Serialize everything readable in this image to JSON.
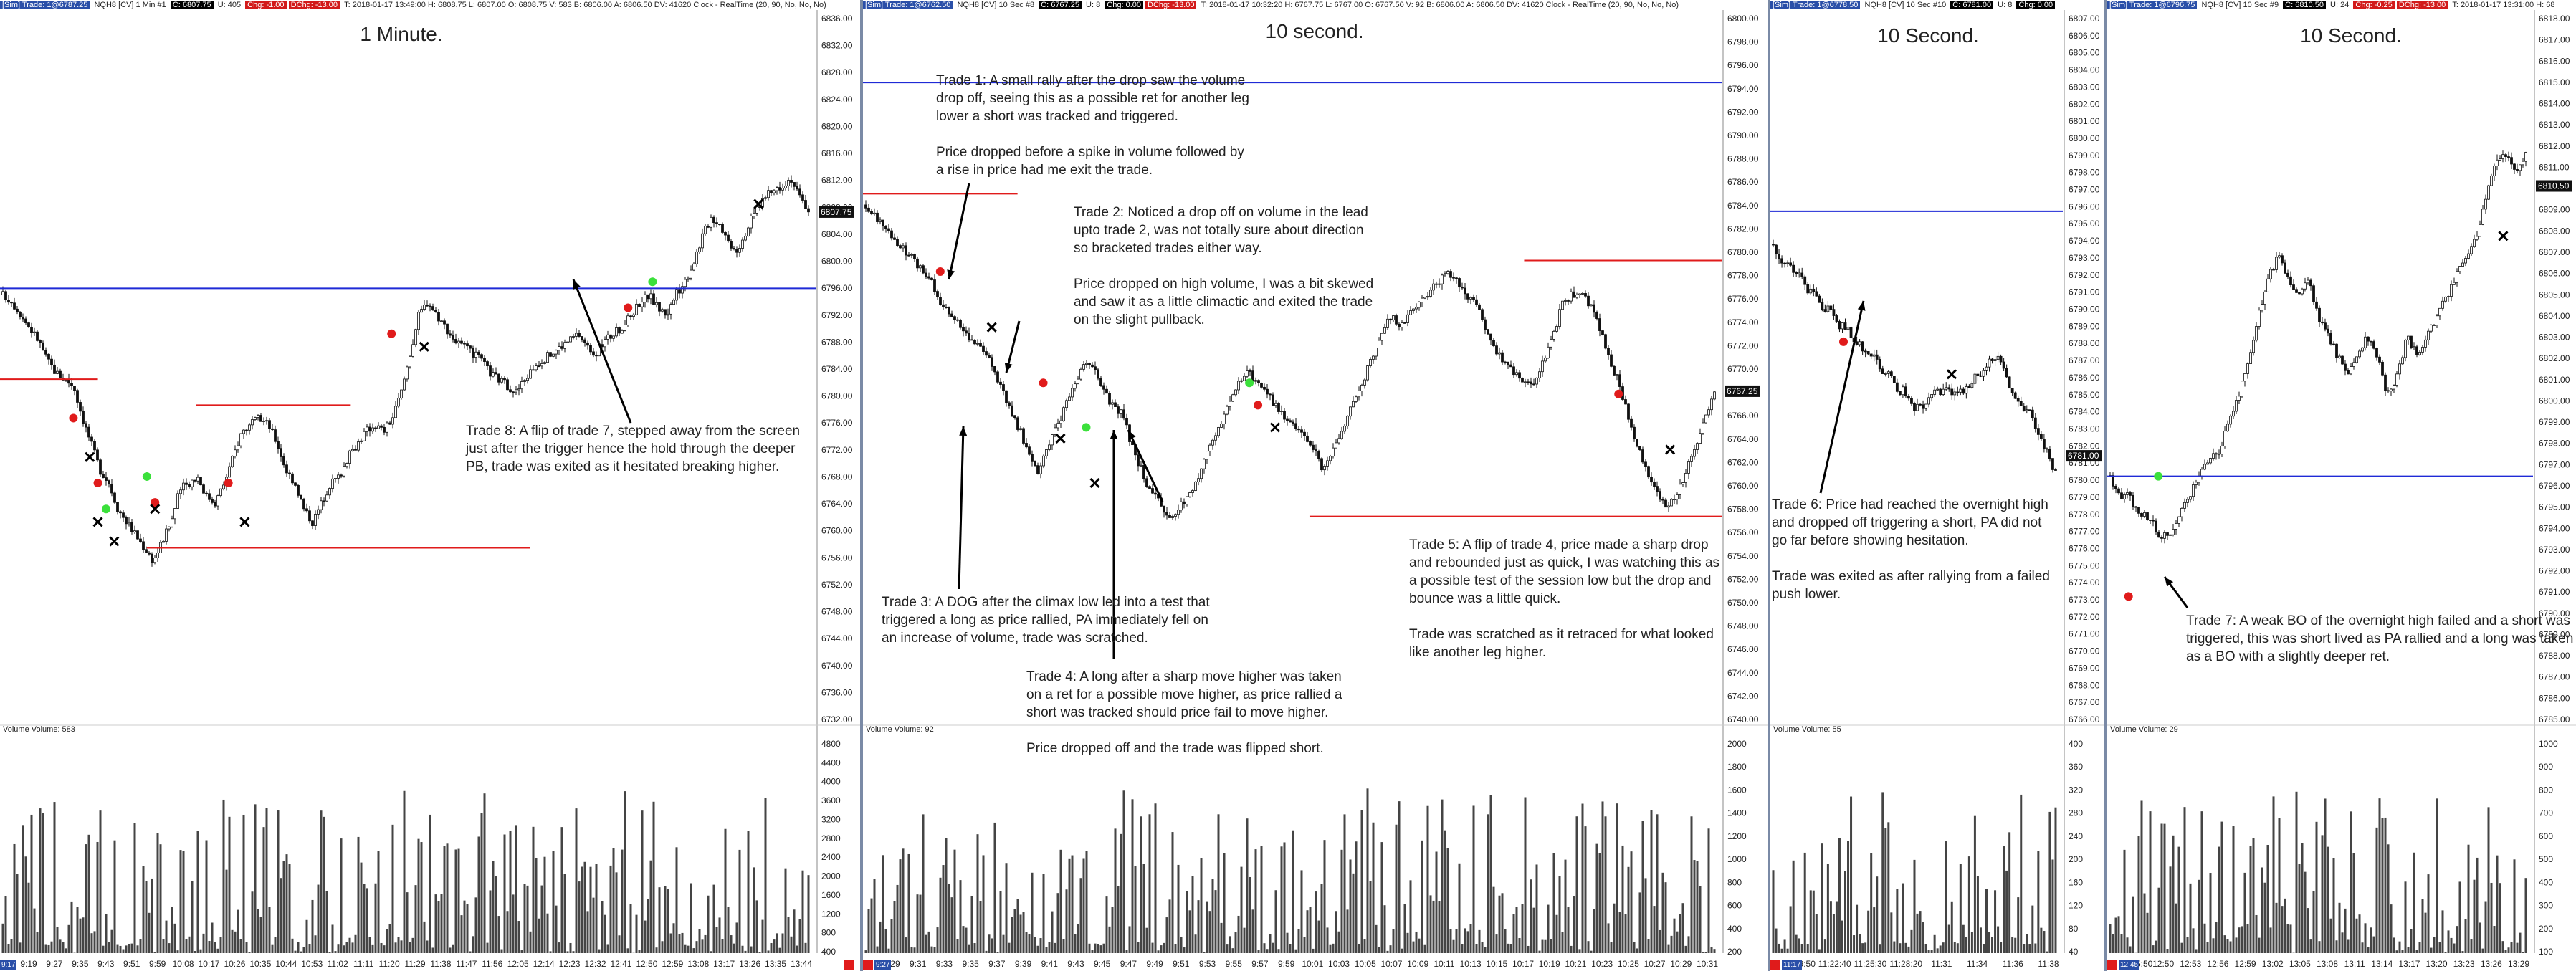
{
  "panels": [
    {
      "id": "p1",
      "title": "1 Minute.",
      "topbar": [
        "[Sim] Trade: 1@6787.25",
        "NQH8 [CV] 1 Min #1",
        "C: 6807.75",
        "U: 405",
        "Chg: -1.00",
        "DChg: -13.00",
        "T: 2018-01-17 13:49:00 H: 6808.75 L: 6807.00 O: 6808.75 V: 583 B: 6806.00 A: 6806.50 DV: 41620 Clock - RealTime  (20, 90, No, No, No)"
      ],
      "price_label": "6807.75",
      "volume_label": "Volume  Volume: 583",
      "y_ticks": [
        "6836.00",
        "6832.00",
        "6828.00",
        "6824.00",
        "6820.00",
        "6816.00",
        "6812.00",
        "6808.00",
        "6804.00",
        "6800.00",
        "6796.00",
        "6792.00",
        "6788.00",
        "6784.00",
        "6780.00",
        "6776.00",
        "6772.00",
        "6768.00",
        "6764.00",
        "6760.00",
        "6756.00",
        "6752.00",
        "6748.00",
        "6744.00",
        "6740.00",
        "6736.00",
        "6732.00"
      ],
      "vol_ticks": [
        "4800",
        "4400",
        "4000",
        "3600",
        "3200",
        "2800",
        "2400",
        "2000",
        "1600",
        "1200",
        "800",
        "400"
      ],
      "x_ticks": [
        "9:19",
        "9:27",
        "9:35",
        "9:43",
        "9:51",
        "9:59",
        "10:08",
        "10:17",
        "10:26",
        "10:35",
        "10:44",
        "10:53",
        "11:02",
        "11:11",
        "11:20",
        "11:29",
        "11:38",
        "11:47",
        "11:56",
        "12:05",
        "12:14",
        "12:23",
        "12:32",
        "12:41",
        "12:50",
        "12:59",
        "13:08",
        "13:17",
        "13:26",
        "13:35",
        "13:44"
      ],
      "corner": "9:17",
      "annotations": [
        {
          "name": "annotation-trade-8",
          "text": "Trade 8:  A flip of trade 7, stepped away from the screen\njust after the trigger hence the hold through the deeper\nPB, trade was exited as it hesitated breaking higher."
        }
      ]
    },
    {
      "id": "p2",
      "title": "10 second.",
      "topbar": [
        "[Sim] Trade: 1@6762.50",
        "NQH8 [CV] 10 Sec #8",
        "C: 6767.25",
        "U: 8",
        "Chg: 0.00",
        "DChg: -13.00",
        "T: 2018-01-17 10:32:20 H: 6767.75 L: 6767.00 O: 6767.50 V: 92 B: 6806.00 A: 6806.50 DV: 41620 Clock - RealTime  (20, 90, No, No, No)"
      ],
      "price_label": "6767.25",
      "volume_label": "Volume  Volume: 92",
      "y_ticks": [
        "6800.00",
        "6798.00",
        "6796.00",
        "6794.00",
        "6792.00",
        "6790.00",
        "6788.00",
        "6786.00",
        "6784.00",
        "6782.00",
        "6780.00",
        "6778.00",
        "6776.00",
        "6774.00",
        "6772.00",
        "6770.00",
        "6768.00",
        "6766.00",
        "6764.00",
        "6762.00",
        "6760.00",
        "6758.00",
        "6756.00",
        "6754.00",
        "6752.00",
        "6750.00",
        "6748.00",
        "6746.00",
        "6744.00",
        "6742.00",
        "6740.00"
      ],
      "vol_ticks": [
        "2000",
        "1800",
        "1600",
        "1400",
        "1200",
        "1000",
        "800",
        "600",
        "400",
        "200"
      ],
      "x_ticks": [
        "9:29",
        "9:31",
        "9:33",
        "9:35",
        "9:37",
        "9:39",
        "9:41",
        "9:43",
        "9:45",
        "9:47",
        "9:49",
        "9:51",
        "9:53",
        "9:55",
        "9:57",
        "9:59",
        "10:01",
        "10:03",
        "10:05",
        "10:07",
        "10:09",
        "10:11",
        "10:13",
        "10:15",
        "10:17",
        "10:19",
        "10:21",
        "10:23",
        "10:25",
        "10:27",
        "10:29",
        "10:31"
      ],
      "corner": "9:27",
      "annotations": [
        {
          "name": "annotation-trade-1",
          "text": "Trade 1:  A small rally after the drop saw the volume\ndrop off, seeing this as a possible ret for another leg\nlower a short was tracked and triggered.\n\nPrice dropped before a spike in volume followed by\na rise in price had me exit the trade."
        },
        {
          "name": "annotation-trade-2",
          "text": "Trade 2:  Noticed a drop off on volume in the lead\nupto trade 2, was not totally sure about direction\nso bracketed trades either way.\n\nPrice dropped on high volume, I was a bit skewed\nand saw it as a little climactic and exited the trade\non the slight pullback."
        },
        {
          "name": "annotation-trade-3",
          "text": "Trade 3:  A DOG after the climax low led into a test that\ntriggered a long as price rallied, PA immediately fell on\nan increase of volume, trade was scratched."
        },
        {
          "name": "annotation-trade-4",
          "text": "Trade 4:  A long after a sharp move higher was taken\non a ret for a possible move higher, as price rallied a\nshort was tracked should price fail to move higher.\n\nPrice dropped off and the trade was flipped short."
        },
        {
          "name": "annotation-trade-5",
          "text": "Trade 5:  A flip of trade 4, price made a sharp drop\nand rebounded just as quick, I was watching this as\na possible test of the session low but the drop and\nbounce was a little quick.\n\nTrade was scratched as it retraced for what looked\nlike another leg higher."
        }
      ]
    },
    {
      "id": "p3",
      "title": "10 Second.",
      "topbar": [
        "[Sim] Trade: 1@6778.50",
        "NQH8 [CV] 10 Sec #10",
        "C: 6781.00",
        "U: 8",
        "Chg: 0.00"
      ],
      "price_label": "6781.00",
      "volume_label": "Volume  Volume: 55",
      "y_ticks": [
        "6807.00",
        "6806.00",
        "6805.00",
        "6804.00",
        "6803.00",
        "6802.00",
        "6801.00",
        "6800.00",
        "6799.00",
        "6798.00",
        "6797.00",
        "6796.00",
        "6795.00",
        "6794.00",
        "6793.00",
        "6792.00",
        "6791.00",
        "6790.00",
        "6789.00",
        "6788.00",
        "6787.00",
        "6786.00",
        "6785.00",
        "6784.00",
        "6783.00",
        "6782.00",
        "6781.00",
        "6780.00",
        "6779.00",
        "6778.00",
        "6777.00",
        "6776.00",
        "6775.00",
        "6774.00",
        "6773.00",
        "6772.00",
        "6771.00",
        "6770.00",
        "6769.00",
        "6768.00",
        "6767.00",
        "6766.00"
      ],
      "vol_ticks": [
        "400",
        "360",
        "320",
        "280",
        "240",
        "200",
        "160",
        "120",
        "80",
        "40"
      ],
      "x_ticks": [
        "11:19:50",
        "11:22:40",
        "11:25:30",
        "11:28:20",
        "11:31",
        "11:34",
        "11:36",
        "11:38"
      ],
      "corner": "11:17",
      "annotations": [
        {
          "name": "annotation-trade-6",
          "text": "Trade 6:  Price had reached the overnight high\nand dropped off triggering a short, PA did not\ngo far before showing hesitation.\n\nTrade was exited as after rallying from a failed\npush lower."
        }
      ]
    },
    {
      "id": "p4",
      "title": "10 Second.",
      "topbar": [
        "[Sim] Trade: 1@6796.75",
        "NQH8 [CV] 10 Sec #9",
        "C: 6810.50",
        "U: 24",
        "Chg: -0.25",
        "DChg: -13.00",
        "T: 2018-01-17 13:31:00 H: 68"
      ],
      "price_label": "6810.50",
      "volume_label": "Volume  Volume: 29",
      "y_ticks": [
        "6818.00",
        "6817.00",
        "6816.00",
        "6815.00",
        "6814.00",
        "6813.00",
        "6812.00",
        "6811.00",
        "6810.00",
        "6809.00",
        "6808.00",
        "6807.00",
        "6806.00",
        "6805.00",
        "6804.00",
        "6803.00",
        "6802.00",
        "6801.00",
        "6800.00",
        "6799.00",
        "6798.00",
        "6797.00",
        "6796.00",
        "6795.00",
        "6794.00",
        "6793.00",
        "6792.00",
        "6791.00",
        "6790.00",
        "6789.00",
        "6788.00",
        "6787.00",
        "6786.00",
        "6785.00"
      ],
      "vol_ticks": [
        "1000",
        "900",
        "800",
        "700",
        "600",
        "500",
        "400",
        "300",
        "200",
        "100"
      ],
      "x_ticks": [
        "12:45:50",
        "12:50",
        "12:53",
        "12:56",
        "12:59",
        "13:02",
        "13:05",
        "13:08",
        "13:11",
        "13:14",
        "13:17",
        "13:20",
        "13:23",
        "13:26",
        "13:29"
      ],
      "corner": "12:45",
      "annotations": [
        {
          "name": "annotation-trade-7",
          "text": "Trade 7:  A weak BO of the overnight high failed and a short was\ntriggered, this was short lived as PA rallied and a long was taken\nas a BO with a slightly deeper ret."
        }
      ]
    }
  ],
  "chart_data": [
    {
      "type": "candlestick",
      "title": "1 Minute.",
      "ylim": [
        6730,
        6838
      ],
      "close": [
        6795,
        6794,
        6792,
        6790,
        6788,
        6785,
        6783,
        6782,
        6781,
        6776,
        6772,
        6768,
        6766,
        6762,
        6760,
        6758,
        6756,
        6754,
        6757,
        6760,
        6765,
        6766,
        6767,
        6764,
        6763,
        6766,
        6770,
        6774,
        6775,
        6776,
        6775,
        6772,
        6768,
        6766,
        6762,
        6760,
        6763,
        6766,
        6767,
        6770,
        6772,
        6774,
        6775,
        6774,
        6776,
        6780,
        6786,
        6792,
        6794,
        6792,
        6790,
        6788,
        6787,
        6786,
        6785,
        6783,
        6782,
        6781,
        6780,
        6782,
        6784,
        6785,
        6786,
        6787,
        6788,
        6789,
        6787,
        6786,
        6788,
        6789,
        6790,
        6792,
        6794,
        6795,
        6793,
        6792,
        6795,
        6797,
        6800,
        6804,
        6807,
        6806,
        6803,
        6802,
        6805,
        6808,
        6810,
        6811,
        6812,
        6813,
        6810,
        6808
      ]
    },
    {
      "type": "candlestick",
      "title": "10 second.",
      "ylim": [
        6738,
        6801
      ],
      "close": [
        6784,
        6783,
        6782,
        6781,
        6780,
        6779,
        6778,
        6777,
        6775,
        6774,
        6773,
        6772,
        6771,
        6770,
        6768,
        6766,
        6764,
        6762,
        6760,
        6762,
        6764,
        6766,
        6768,
        6770,
        6769,
        6767,
        6766,
        6765,
        6762,
        6760,
        6758,
        6757,
        6756,
        6757,
        6758,
        6760,
        6762,
        6764,
        6766,
        6768,
        6769,
        6768,
        6767,
        6766,
        6765,
        6764,
        6763,
        6762,
        6760,
        6762,
        6764,
        6766,
        6768,
        6770,
        6772,
        6774,
        6773,
        6774,
        6775,
        6776,
        6777,
        6778,
        6777,
        6776,
        6775,
        6773,
        6771,
        6770,
        6769,
        6768,
        6768,
        6770,
        6772,
        6775,
        6776,
        6776,
        6775,
        6773,
        6770,
        6768,
        6765,
        6762,
        6760,
        6758,
        6757,
        6758,
        6760,
        6762,
        6765,
        6767
      ]
    },
    {
      "type": "candlestick",
      "title": "10 Second.",
      "ylim": [
        6765,
        6808
      ],
      "close": [
        6794,
        6793,
        6793,
        6792,
        6792,
        6791,
        6791,
        6790,
        6790,
        6789,
        6789,
        6788,
        6788,
        6787,
        6787,
        6786,
        6786,
        6785,
        6785,
        6784,
        6784,
        6784,
        6785,
        6785,
        6785,
        6785,
        6785,
        6785,
        6786,
        6786,
        6787,
        6787,
        6786,
        6785,
        6784,
        6784,
        6783,
        6782,
        6781,
        6780
      ]
    },
    {
      "type": "candlestick",
      "title": "10 Second.",
      "ylim": [
        6784,
        6819
      ],
      "close": [
        6796,
        6795,
        6795,
        6794,
        6794,
        6793,
        6793,
        6794,
        6795,
        6796,
        6797,
        6797,
        6799,
        6800,
        6802,
        6804,
        6806,
        6807,
        6806,
        6805,
        6806,
        6804,
        6803,
        6802,
        6801,
        6802,
        6803,
        6802,
        6800,
        6801,
        6803,
        6802,
        6803,
        6804,
        6805,
        6806,
        6807,
        6808,
        6810,
        6812,
        6812,
        6811,
        6812
      ]
    }
  ]
}
